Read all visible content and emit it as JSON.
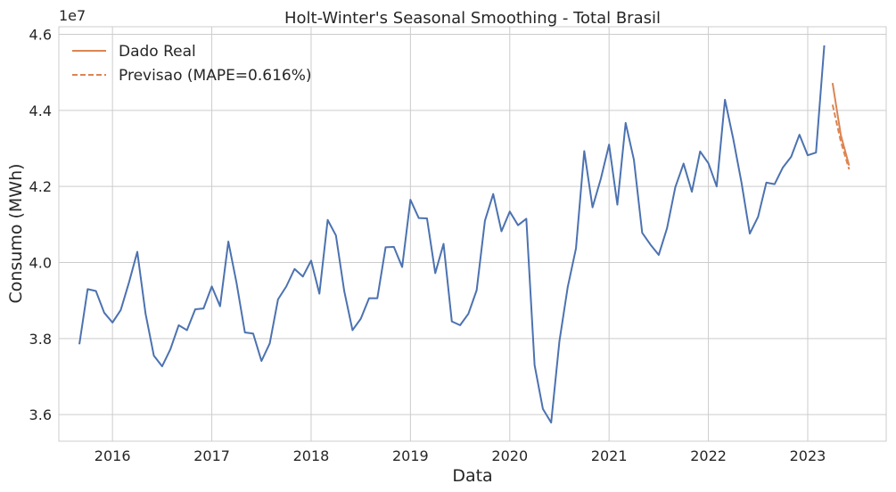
{
  "chart_data": {
    "type": "line",
    "title": "Holt-Winter's Seasonal Smoothing - Total Brasil",
    "xlabel": "Data",
    "ylabel": "Consumo (MWh)",
    "y_offset_label": "1e7",
    "ylim": [
      3.53,
      4.62
    ],
    "xlim": [
      2015.46,
      2023.79
    ],
    "y_ticks": [
      {
        "value": 3.6,
        "label": "3.6"
      },
      {
        "value": 3.8,
        "label": "3.8"
      },
      {
        "value": 4.0,
        "label": "4.0"
      },
      {
        "value": 4.2,
        "label": "4.2"
      },
      {
        "value": 4.4,
        "label": "4.4"
      },
      {
        "value": 4.6,
        "label": "4.6"
      }
    ],
    "x_ticks": [
      {
        "value": 2016,
        "label": "2016"
      },
      {
        "value": 2017,
        "label": "2017"
      },
      {
        "value": 2018,
        "label": "2018"
      },
      {
        "value": 2019,
        "label": "2019"
      },
      {
        "value": 2020,
        "label": "2020"
      },
      {
        "value": 2021,
        "label": "2021"
      },
      {
        "value": 2022,
        "label": "2022"
      },
      {
        "value": 2023,
        "label": "2023"
      }
    ],
    "grid": true,
    "legend_position": "top-left",
    "series": [
      {
        "name": "",
        "color": "#4c72b0",
        "style": "solid",
        "x": [
          "2015-09",
          "2015-10",
          "2015-11",
          "2015-12",
          "2016-01",
          "2016-02",
          "2016-03",
          "2016-04",
          "2016-05",
          "2016-06",
          "2016-07",
          "2016-08",
          "2016-09",
          "2016-10",
          "2016-11",
          "2016-12",
          "2017-01",
          "2017-02",
          "2017-03",
          "2017-04",
          "2017-05",
          "2017-06",
          "2017-07",
          "2017-08",
          "2017-09",
          "2017-10",
          "2017-11",
          "2017-12",
          "2018-01",
          "2018-02",
          "2018-03",
          "2018-04",
          "2018-05",
          "2018-06",
          "2018-07",
          "2018-08",
          "2018-09",
          "2018-10",
          "2018-11",
          "2018-12",
          "2019-01",
          "2019-02",
          "2019-03",
          "2019-04",
          "2019-05",
          "2019-06",
          "2019-07",
          "2019-08",
          "2019-09",
          "2019-10",
          "2019-11",
          "2019-12",
          "2020-01",
          "2020-02",
          "2020-03",
          "2020-04",
          "2020-05",
          "2020-06",
          "2020-07",
          "2020-08",
          "2020-09",
          "2020-10",
          "2020-11",
          "2020-12",
          "2021-01",
          "2021-02",
          "2021-03",
          "2021-04",
          "2021-05",
          "2021-06",
          "2021-07",
          "2021-08",
          "2021-09",
          "2021-10",
          "2021-11",
          "2021-12",
          "2022-01",
          "2022-02",
          "2022-03",
          "2022-04",
          "2022-05",
          "2022-06",
          "2022-07",
          "2022-08",
          "2022-09",
          "2022-10",
          "2022-11",
          "2022-12",
          "2023-01",
          "2023-02",
          "2023-03"
        ],
        "values": [
          3.785,
          3.93,
          3.925,
          3.868,
          3.842,
          3.875,
          3.948,
          4.028,
          3.865,
          3.755,
          3.727,
          3.772,
          3.835,
          3.822,
          3.877,
          3.879,
          3.937,
          3.885,
          4.055,
          3.945,
          3.816,
          3.813,
          3.741,
          3.787,
          3.903,
          3.937,
          3.983,
          3.963,
          4.005,
          3.918,
          4.112,
          4.071,
          3.925,
          3.822,
          3.852,
          3.906,
          3.906,
          4.04,
          4.041,
          3.988,
          4.165,
          4.117,
          4.116,
          3.972,
          4.049,
          3.845,
          3.835,
          3.865,
          3.927,
          4.11,
          4.18,
          4.082,
          4.134,
          4.098,
          4.115,
          3.73,
          3.615,
          3.579,
          3.793,
          3.935,
          4.037,
          4.293,
          4.145,
          4.22,
          4.31,
          4.152,
          4.367,
          4.27,
          4.078,
          4.047,
          4.02,
          4.09,
          4.198,
          4.26,
          4.186,
          4.292,
          4.261,
          4.2,
          4.428,
          4.325,
          4.21,
          4.076,
          4.12,
          4.21,
          4.206,
          4.25,
          4.278,
          4.336,
          4.282,
          4.289,
          4.571
        ]
      },
      {
        "name": "Dado Real",
        "color": "#dd8452",
        "style": "solid",
        "x": [
          "2023-04",
          "2023-05",
          "2023-06"
        ],
        "values": [
          4.472,
          4.335,
          4.255
        ]
      },
      {
        "name": "Previsao (MAPE=0.616%)",
        "color": "#dd8452",
        "style": "dashed",
        "x": [
          "2023-04",
          "2023-05",
          "2023-06"
        ],
        "values": [
          4.415,
          4.318,
          4.245
        ]
      }
    ]
  }
}
